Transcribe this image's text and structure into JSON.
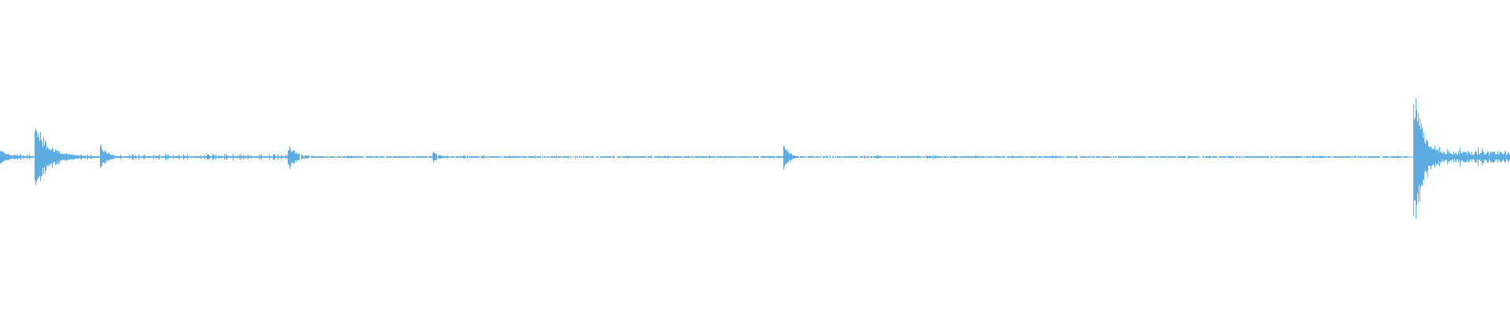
{
  "waveform": {
    "color": "#5dade2",
    "background": "#ffffff"
  }
}
